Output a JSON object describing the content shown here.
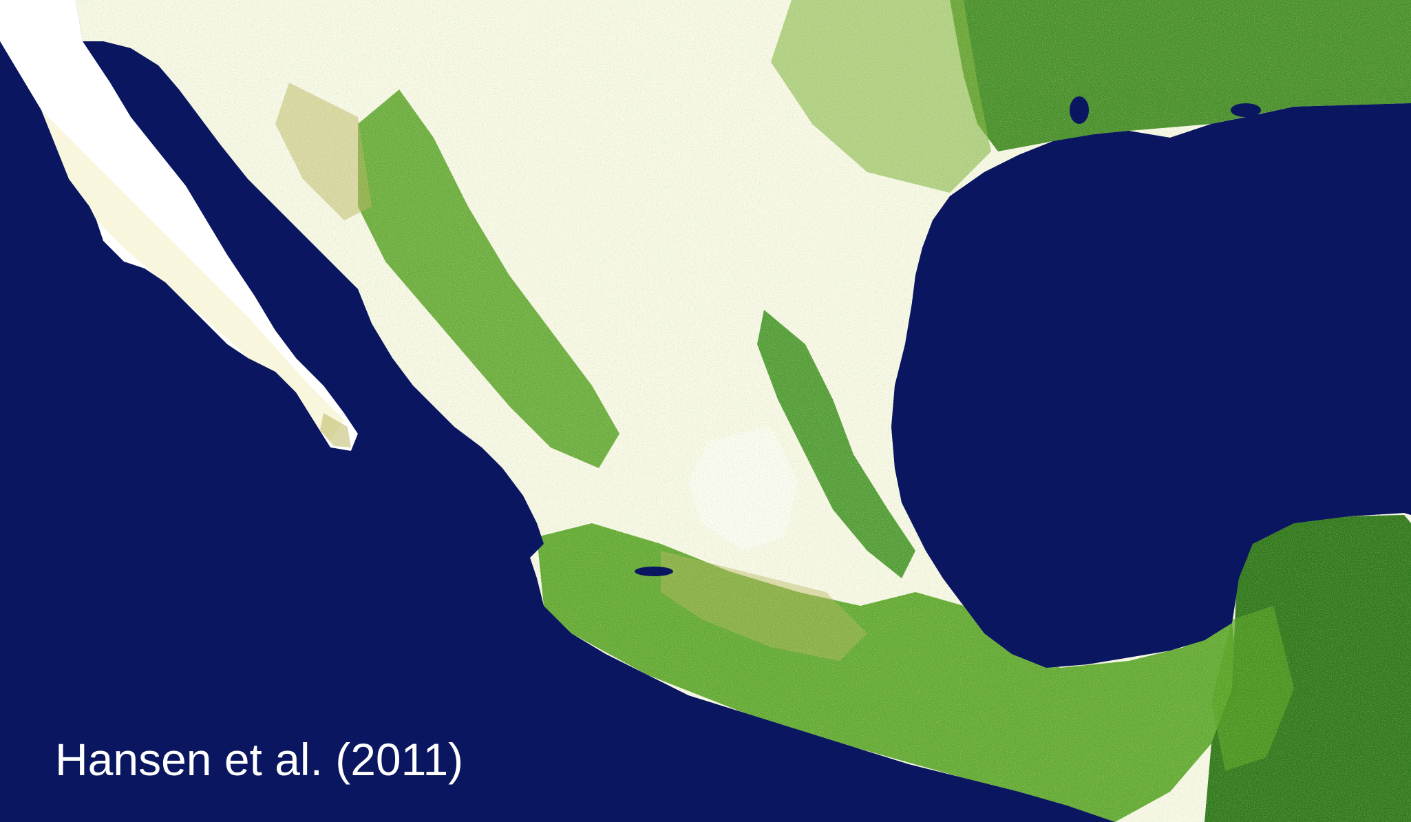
{
  "credit": "Hansen et al. (2011)",
  "colors": {
    "water": "#0a1660",
    "bare": "#ffffff",
    "sparse": "#f2efc0",
    "shrub": "#b7b45a",
    "forest_light": "#4e9e1a",
    "forest_dense": "#1d6b08"
  }
}
